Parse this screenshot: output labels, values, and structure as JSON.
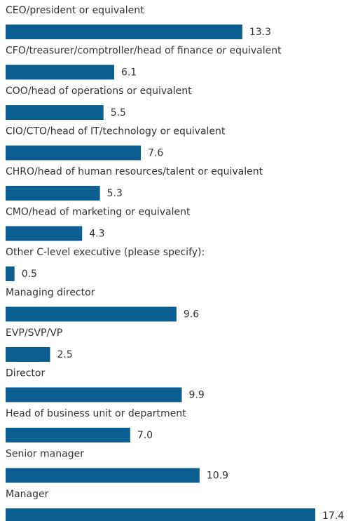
{
  "chart_data": {
    "type": "bar",
    "orientation": "horizontal",
    "color": "#0b5e92",
    "categories": [
      "CEO/president or equivalent",
      "CFO/treasurer/comptroller/head of finance or equivalent",
      "COO/head of operations or equivalent",
      "CIO/CTO/head of IT/technology or equivalent",
      "CHRO/head of human resources/talent or equivalent",
      "CMO/head of marketing or equivalent",
      "Other C-level executive (please specify):",
      "Managing director",
      "EVP/SVP/VP",
      "Director",
      "Head of business unit or department",
      "Senior manager",
      "Manager"
    ],
    "values": [
      13.3,
      6.1,
      5.5,
      7.6,
      5.3,
      4.3,
      0.5,
      9.6,
      2.5,
      9.9,
      7.0,
      10.9,
      17.4
    ],
    "value_labels": [
      "13.3",
      "6.1",
      "5.5",
      "7.6",
      "5.3",
      "4.3",
      "0.5",
      "9.6",
      "2.5",
      "9.9",
      "7.0",
      "10.9",
      "17.4"
    ]
  }
}
